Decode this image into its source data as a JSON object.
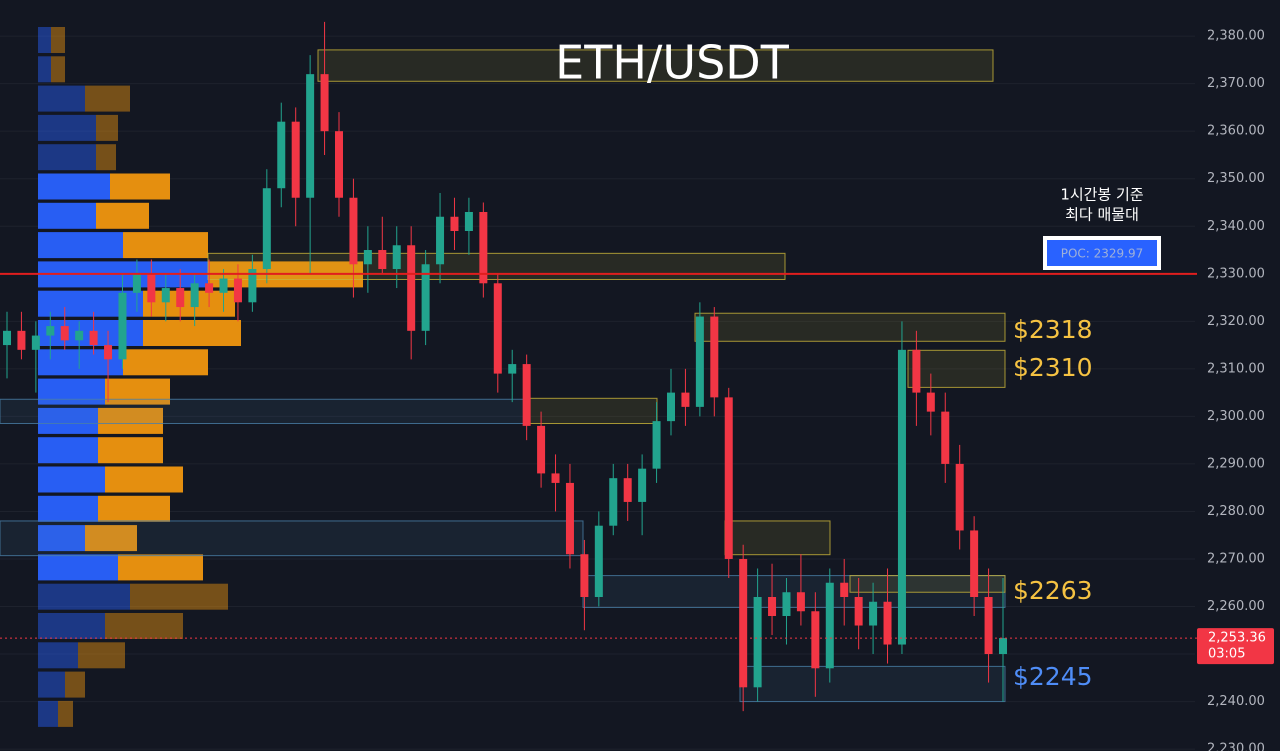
{
  "chart_data": {
    "type": "candlestick",
    "title": "ETH/USDT",
    "annotation": [
      "1시간봉 기준",
      "최다 매물대"
    ],
    "poc": {
      "value": 2329.97,
      "label": "POC: 2329.97",
      "color": "#e01e1e"
    },
    "last_price": {
      "value": 2253.36,
      "label": "2,253.36",
      "countdown": "03:05",
      "color": "#f23645"
    },
    "ylim": [
      2229.6,
      2387.6
    ],
    "yticks": [
      {
        "value": 2230,
        "label": "2,230.00"
      },
      {
        "value": 2240,
        "label": "2,240.00"
      },
      {
        "value": 2250,
        "label": "2,250.00"
      },
      {
        "value": 2260,
        "label": "2,260.00"
      },
      {
        "value": 2270,
        "label": "2,270.00"
      },
      {
        "value": 2280,
        "label": "2,280.00"
      },
      {
        "value": 2290,
        "label": "2,290.00"
      },
      {
        "value": 2300,
        "label": "2,300.00"
      },
      {
        "value": 2310,
        "label": "2,310.00"
      },
      {
        "value": 2320,
        "label": "2,320.00"
      },
      {
        "value": 2330,
        "label": "2,330.00"
      },
      {
        "value": 2340,
        "label": "2,340.00"
      },
      {
        "value": 2350,
        "label": "2,350.00"
      },
      {
        "value": 2360,
        "label": "2,360.00"
      },
      {
        "value": 2370,
        "label": "2,370.00"
      },
      {
        "value": 2380,
        "label": "2,380.00"
      }
    ],
    "grid": true,
    "up_color": "#22a48e",
    "down_color": "#f23645",
    "ohlc": [
      [
        2315,
        2322,
        2308,
        2318
      ],
      [
        2318,
        2322,
        2312,
        2314
      ],
      [
        2314,
        2320,
        2305,
        2317
      ],
      [
        2317,
        2322,
        2312,
        2319
      ],
      [
        2319,
        2323,
        2314,
        2316
      ],
      [
        2316,
        2320,
        2310,
        2318
      ],
      [
        2318,
        2322,
        2313,
        2315
      ],
      [
        2315,
        2318,
        2303,
        2312
      ],
      [
        2312,
        2330,
        2310,
        2326
      ],
      [
        2326,
        2333,
        2322,
        2330
      ],
      [
        2330,
        2333,
        2321,
        2324
      ],
      [
        2324,
        2330,
        2320,
        2327
      ],
      [
        2327,
        2331,
        2320,
        2323
      ],
      [
        2323,
        2330,
        2319,
        2328
      ],
      [
        2328,
        2333,
        2323,
        2326
      ],
      [
        2326,
        2331,
        2322,
        2329
      ],
      [
        2329,
        2332,
        2320,
        2324
      ],
      [
        2324,
        2334,
        2322,
        2331
      ],
      [
        2331,
        2352,
        2328,
        2348
      ],
      [
        2348,
        2366,
        2344,
        2362
      ],
      [
        2362,
        2365,
        2340,
        2346
      ],
      [
        2346,
        2376,
        2330,
        2372
      ],
      [
        2372,
        2383,
        2355,
        2360
      ],
      [
        2360,
        2364,
        2342,
        2346
      ],
      [
        2346,
        2350,
        2325,
        2332
      ],
      [
        2332,
        2340,
        2326,
        2335
      ],
      [
        2335,
        2342,
        2330,
        2331
      ],
      [
        2331,
        2340,
        2327,
        2336
      ],
      [
        2336,
        2340,
        2312,
        2318
      ],
      [
        2318,
        2335,
        2315,
        2332
      ],
      [
        2332,
        2347,
        2328,
        2342
      ],
      [
        2342,
        2346,
        2335,
        2339
      ],
      [
        2339,
        2346,
        2334,
        2343
      ],
      [
        2343,
        2345,
        2325,
        2328
      ],
      [
        2328,
        2330,
        2305,
        2309
      ],
      [
        2309,
        2314,
        2303,
        2311
      ],
      [
        2311,
        2313,
        2295,
        2298
      ],
      [
        2298,
        2301,
        2285,
        2288
      ],
      [
        2288,
        2292,
        2280,
        2286
      ],
      [
        2286,
        2290,
        2268,
        2271
      ],
      [
        2271,
        2274,
        2255,
        2262
      ],
      [
        2262,
        2280,
        2260,
        2277
      ],
      [
        2277,
        2290,
        2275,
        2287
      ],
      [
        2287,
        2290,
        2278,
        2282
      ],
      [
        2282,
        2292,
        2275,
        2289
      ],
      [
        2289,
        2303,
        2286,
        2299
      ],
      [
        2299,
        2310,
        2296,
        2305
      ],
      [
        2305,
        2310,
        2298,
        2302
      ],
      [
        2302,
        2324,
        2300,
        2321
      ],
      [
        2321,
        2323,
        2300,
        2304
      ],
      [
        2304,
        2306,
        2266,
        2270
      ],
      [
        2270,
        2273,
        2238,
        2243
      ],
      [
        2243,
        2268,
        2240,
        2262
      ],
      [
        2262,
        2269,
        2254,
        2258
      ],
      [
        2258,
        2266,
        2252,
        2263
      ],
      [
        2263,
        2271,
        2256,
        2259
      ],
      [
        2259,
        2263,
        2241,
        2247
      ],
      [
        2247,
        2268,
        2244,
        2265
      ],
      [
        2265,
        2270,
        2256,
        2262
      ],
      [
        2262,
        2266,
        2251,
        2256
      ],
      [
        2256,
        2265,
        2250,
        2261
      ],
      [
        2261,
        2268,
        2248,
        2252
      ],
      [
        2252,
        2320,
        2250,
        2314
      ],
      [
        2314,
        2318,
        2298,
        2305
      ],
      [
        2305,
        2309,
        2296,
        2301
      ],
      [
        2301,
        2305,
        2286,
        2290
      ],
      [
        2290,
        2294,
        2272,
        2276
      ],
      [
        2276,
        2279,
        2258,
        2262
      ],
      [
        2262,
        2268,
        2244,
        2250
      ],
      [
        2250,
        2266,
        2240,
        2253.36
      ]
    ],
    "volume_profile": {
      "buy_color": "#2962ff",
      "sell_color": "#f0960f",
      "buy": [
        13,
        13,
        47,
        58,
        58,
        72,
        58,
        85,
        170,
        105,
        105,
        85,
        67,
        60,
        60,
        67,
        60,
        47,
        80,
        92,
        67,
        40,
        27,
        20
      ],
      "sell": [
        14,
        14,
        45,
        22,
        20,
        60,
        53,
        85,
        155,
        92,
        98,
        85,
        65,
        65,
        65,
        78,
        72,
        52,
        85,
        98,
        78,
        47,
        20,
        15
      ]
    },
    "zones": [
      {
        "high": 2377.1,
        "low": 2370.5,
        "color": "#c9b43a"
      },
      {
        "high": 2334.3,
        "low": 2328.8,
        "color": "#c9b43a"
      },
      {
        "high": 2321.7,
        "low": 2315.8,
        "color": "#c9b43a"
      },
      {
        "high": 2313.9,
        "low": 2306.1,
        "color": "#c9b43a"
      },
      {
        "high": 2303.8,
        "low": 2298.5,
        "color": "#c9b43a"
      },
      {
        "high": 2303.6,
        "low": 2298.5,
        "color": "#4a7fa8"
      },
      {
        "high": 2278.0,
        "low": 2270.9,
        "color": "#c9b43a"
      },
      {
        "high": 2278.0,
        "low": 2270.7,
        "color": "#4a7fa8"
      },
      {
        "high": 2266.5,
        "low": 2259.8,
        "color": "#4a7fa8"
      },
      {
        "high": 2266.5,
        "low": 2263.0,
        "color": "#c9b43a"
      },
      {
        "high": 2247.4,
        "low": 2240.0,
        "color": "#4a7fa8"
      }
    ],
    "levels": [
      {
        "value": 2318,
        "label": "$2318",
        "color": "#f5c242"
      },
      {
        "value": 2310,
        "label": "$2310",
        "color": "#f5c242"
      },
      {
        "value": 2263,
        "label": "$2263",
        "color": "#f5c242"
      },
      {
        "value": 2245,
        "label": "$2245",
        "color": "#4f8df7"
      }
    ]
  }
}
